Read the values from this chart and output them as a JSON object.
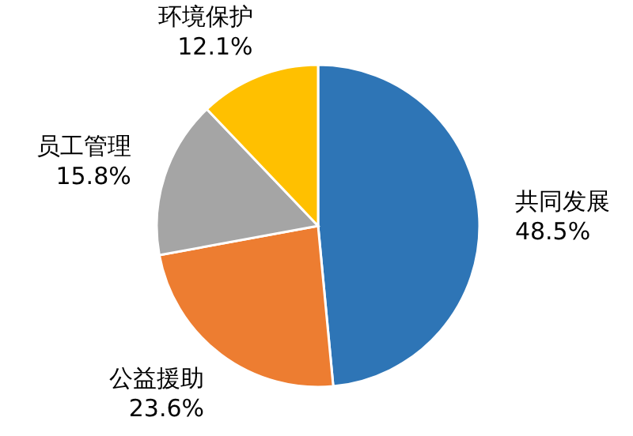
{
  "chart_data": {
    "type": "pie",
    "categories": [
      "共同发展",
      "公益援助",
      "员工管理",
      "环境保护"
    ],
    "values": [
      48.5,
      23.6,
      15.8,
      12.1
    ],
    "value_labels": [
      "48.5%",
      "23.6%",
      "15.8%",
      "12.1%"
    ],
    "colors": [
      "#2e75b6",
      "#ed7d31",
      "#a5a5a5",
      "#ffc000"
    ]
  }
}
